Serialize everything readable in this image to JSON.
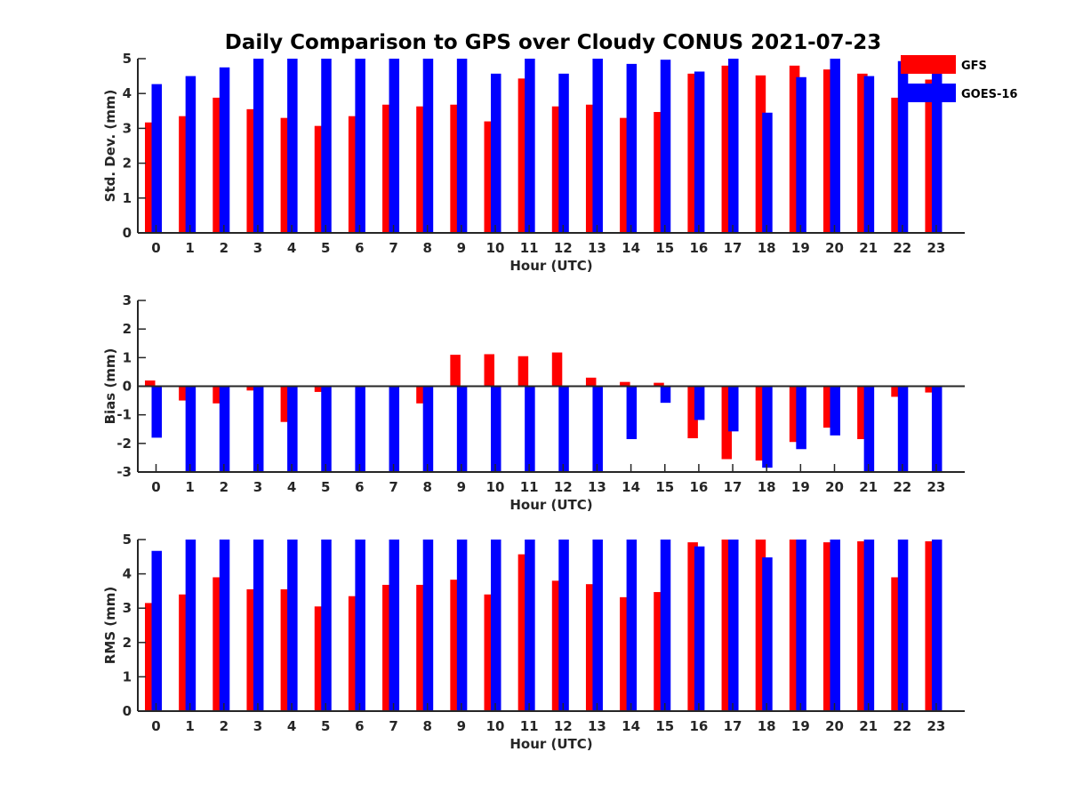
{
  "title": "Daily Comparison to GPS over Cloudy CONUS 2021-07-23",
  "colors": {
    "GFS": "#ff0000",
    "GOES-16": "#0000ff",
    "axis": "#262626"
  },
  "legend": {
    "placement": "top-right",
    "entries": [
      "GFS",
      "GOES-16"
    ]
  },
  "chart_data": [
    {
      "type": "bar",
      "xlabel": "Hour (UTC)",
      "ylabel": "Std. Dev. (mm)",
      "ylim": [
        0,
        5
      ],
      "yticks": [
        0,
        1,
        2,
        3,
        4,
        5
      ],
      "categories": [
        "0",
        "1",
        "2",
        "3",
        "4",
        "5",
        "6",
        "7",
        "8",
        "9",
        "10",
        "11",
        "12",
        "13",
        "14",
        "15",
        "16",
        "17",
        "18",
        "19",
        "20",
        "21",
        "22",
        "23"
      ],
      "series": [
        {
          "name": "GFS",
          "values": [
            3.17,
            3.35,
            3.88,
            3.55,
            3.3,
            3.07,
            3.35,
            3.68,
            3.63,
            3.68,
            3.2,
            4.43,
            3.63,
            3.68,
            3.3,
            3.47,
            4.57,
            4.8,
            4.52,
            4.8,
            4.69,
            4.57,
            3.88,
            4.4
          ]
        },
        {
          "name": "GOES-16",
          "values": [
            4.27,
            4.5,
            4.75,
            5,
            5,
            5,
            5,
            5,
            5,
            5,
            4.57,
            5,
            4.57,
            5,
            4.85,
            4.97,
            4.63,
            5,
            3.45,
            4.47,
            5,
            4.5,
            4.93,
            4.7
          ]
        }
      ]
    },
    {
      "type": "bar",
      "xlabel": "Hour (UTC)",
      "ylabel": "Bias (mm)",
      "ylim": [
        -3,
        3
      ],
      "yticks": [
        -3,
        -2,
        -1,
        0,
        1,
        2,
        3
      ],
      "categories": [
        "0",
        "1",
        "2",
        "3",
        "4",
        "5",
        "6",
        "7",
        "8",
        "9",
        "10",
        "11",
        "12",
        "13",
        "14",
        "15",
        "16",
        "17",
        "18",
        "19",
        "20",
        "21",
        "22",
        "23"
      ],
      "series": [
        {
          "name": "GFS",
          "values": [
            0.2,
            -0.5,
            -0.6,
            -0.15,
            -1.25,
            -0.2,
            0,
            0,
            -0.6,
            1.1,
            1.12,
            1.05,
            1.18,
            0.3,
            0.15,
            0.12,
            -1.82,
            -2.55,
            -2.6,
            -1.95,
            -1.45,
            -1.85,
            -0.37,
            -0.22
          ]
        },
        {
          "name": "GOES-16",
          "values": [
            -1.8,
            -3,
            -3,
            -3,
            -3,
            -3,
            -3,
            -3,
            -3,
            -3,
            -3,
            -3,
            -3,
            -3,
            -1.85,
            -0.58,
            -1.18,
            -1.58,
            -2.85,
            -2.2,
            -1.72,
            -3,
            -3,
            -3
          ]
        }
      ]
    },
    {
      "type": "bar",
      "xlabel": "Hour (UTC)",
      "ylabel": "RMS (mm)",
      "ylim": [
        0,
        5
      ],
      "yticks": [
        0,
        1,
        2,
        3,
        4,
        5
      ],
      "categories": [
        "0",
        "1",
        "2",
        "3",
        "4",
        "5",
        "6",
        "7",
        "8",
        "9",
        "10",
        "11",
        "12",
        "13",
        "14",
        "15",
        "16",
        "17",
        "18",
        "19",
        "20",
        "21",
        "22",
        "23"
      ],
      "series": [
        {
          "name": "GFS",
          "values": [
            3.15,
            3.4,
            3.9,
            3.55,
            3.55,
            3.05,
            3.35,
            3.68,
            3.68,
            3.83,
            3.4,
            4.57,
            3.8,
            3.7,
            3.32,
            3.47,
            4.92,
            5,
            5,
            5,
            4.92,
            4.95,
            3.9,
            4.95
          ]
        },
        {
          "name": "GOES-16",
          "values": [
            4.67,
            5,
            5,
            5,
            5,
            5,
            5,
            5,
            5,
            5,
            5,
            5,
            5,
            5,
            5,
            5,
            4.8,
            5,
            4.48,
            5,
            5,
            5,
            5,
            5
          ]
        }
      ]
    }
  ]
}
